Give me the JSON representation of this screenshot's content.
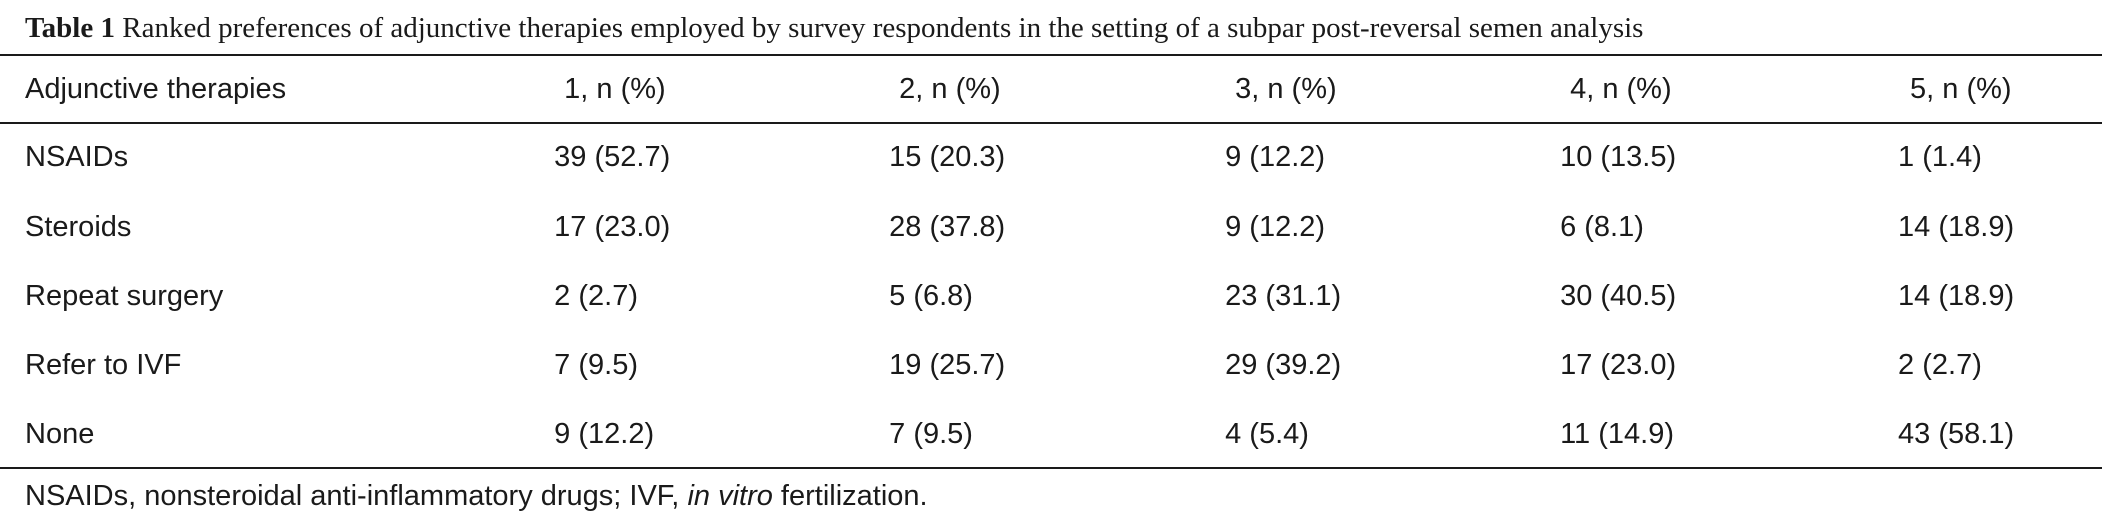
{
  "caption": {
    "label": "Table 1",
    "text": "Ranked preferences of adjunctive therapies employed by survey respondents in the setting of a subpar post-reversal semen analysis"
  },
  "table": {
    "headers": [
      "Adjunctive therapies",
      "1, n (%)",
      "2, n (%)",
      "3, n (%)",
      "4, n (%)",
      "5, n (%)"
    ],
    "rows": [
      {
        "name": "NSAIDs",
        "values": [
          "39 (52.7)",
          "15 (20.3)",
          "9 (12.2)",
          "10 (13.5)",
          "1 (1.4)"
        ]
      },
      {
        "name": "Steroids",
        "values": [
          "17 (23.0)",
          "28 (37.8)",
          "9 (12.2)",
          "6 (8.1)",
          "14 (18.9)"
        ]
      },
      {
        "name": "Repeat surgery",
        "values": [
          "2 (2.7)",
          "5 (6.8)",
          "23 (31.1)",
          "30 (40.5)",
          "14 (18.9)"
        ]
      },
      {
        "name": "Refer to IVF",
        "values": [
          "7 (9.5)",
          "19 (25.7)",
          "29 (39.2)",
          "17 (23.0)",
          "2 (2.7)"
        ]
      },
      {
        "name": "None",
        "values": [
          "9 (12.2)",
          "7 (9.5)",
          "4 (5.4)",
          "11 (14.9)",
          "43 (58.1)"
        ]
      }
    ]
  },
  "footnote": {
    "prefix": "NSAIDs, nonsteroidal anti-inflammatory drugs; IVF, ",
    "italic": "in vitro",
    "suffix": " fertilization."
  }
}
